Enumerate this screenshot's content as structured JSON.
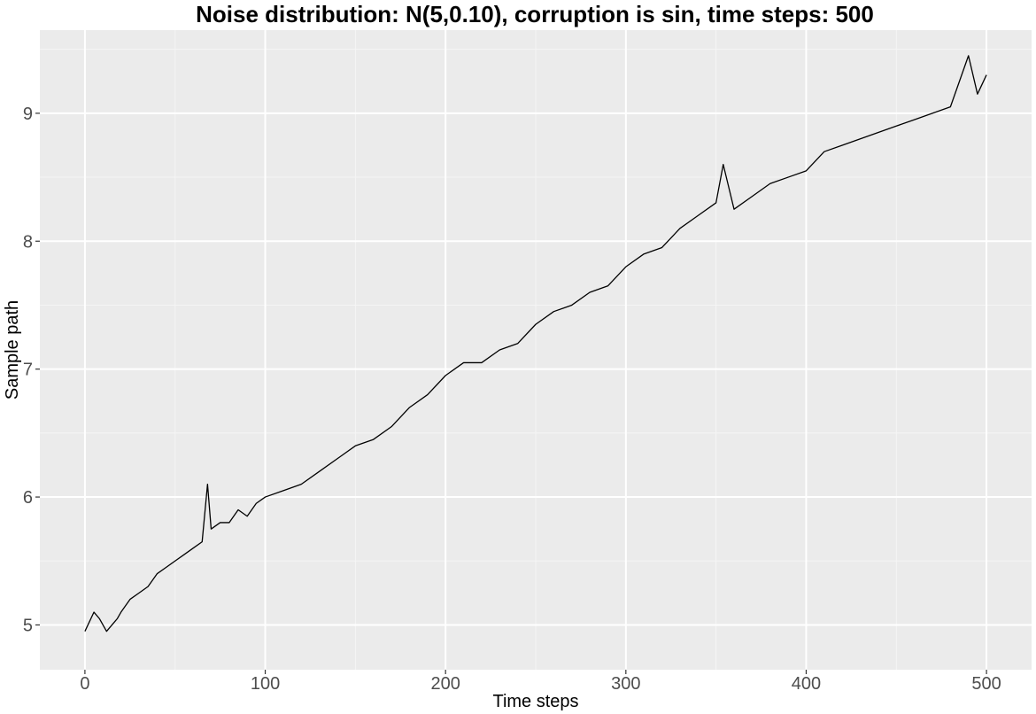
{
  "chart_data": {
    "type": "line",
    "title": "Noise distribution: N(5,0.10), corruption is sin, time steps: 500",
    "xlabel": "Time steps",
    "ylabel": "Sample path",
    "xlim": [
      -25,
      525
    ],
    "ylim": [
      4.65,
      9.65
    ],
    "x_ticks": [
      0,
      100,
      200,
      300,
      400,
      500
    ],
    "y_ticks": [
      5,
      6,
      7,
      8,
      9
    ],
    "x_tick_labels": [
      "0",
      "100",
      "200",
      "300",
      "400",
      "500"
    ],
    "y_tick_labels": [
      "5",
      "6",
      "7",
      "8",
      "9"
    ],
    "x_minor_ticks": [
      50,
      150,
      250,
      350,
      450
    ],
    "y_minor_ticks": [
      5.5,
      6.5,
      7.5,
      8.5,
      9.5
    ],
    "grid": true,
    "background": "#ebebeb",
    "line_color": "#000000",
    "series": [
      {
        "x": [
          0,
          5,
          8,
          12,
          15,
          18,
          20,
          25,
          30,
          35,
          40,
          45,
          50,
          55,
          60,
          65,
          68,
          70,
          75,
          80,
          85,
          90,
          95,
          100,
          110,
          120,
          130,
          140,
          150,
          160,
          170,
          180,
          190,
          200,
          210,
          220,
          230,
          240,
          250,
          260,
          270,
          280,
          290,
          300,
          310,
          320,
          330,
          340,
          350,
          354,
          360,
          370,
          380,
          390,
          400,
          410,
          420,
          430,
          440,
          450,
          460,
          470,
          480,
          490,
          495,
          500
        ],
        "y": [
          4.95,
          5.1,
          5.05,
          4.95,
          5.0,
          5.05,
          5.1,
          5.2,
          5.25,
          5.3,
          5.4,
          5.45,
          5.5,
          5.55,
          5.6,
          5.65,
          6.1,
          5.75,
          5.8,
          5.8,
          5.9,
          5.85,
          5.95,
          6.0,
          6.05,
          6.1,
          6.2,
          6.3,
          6.4,
          6.45,
          6.55,
          6.7,
          6.8,
          6.95,
          7.05,
          7.05,
          7.15,
          7.2,
          7.35,
          7.45,
          7.5,
          7.6,
          7.65,
          7.8,
          7.9,
          7.95,
          8.1,
          8.2,
          8.3,
          8.6,
          8.25,
          8.35,
          8.45,
          8.5,
          8.55,
          8.7,
          8.75,
          8.8,
          8.85,
          8.9,
          8.95,
          9.0,
          9.05,
          9.45,
          9.15,
          9.3
        ]
      }
    ]
  }
}
